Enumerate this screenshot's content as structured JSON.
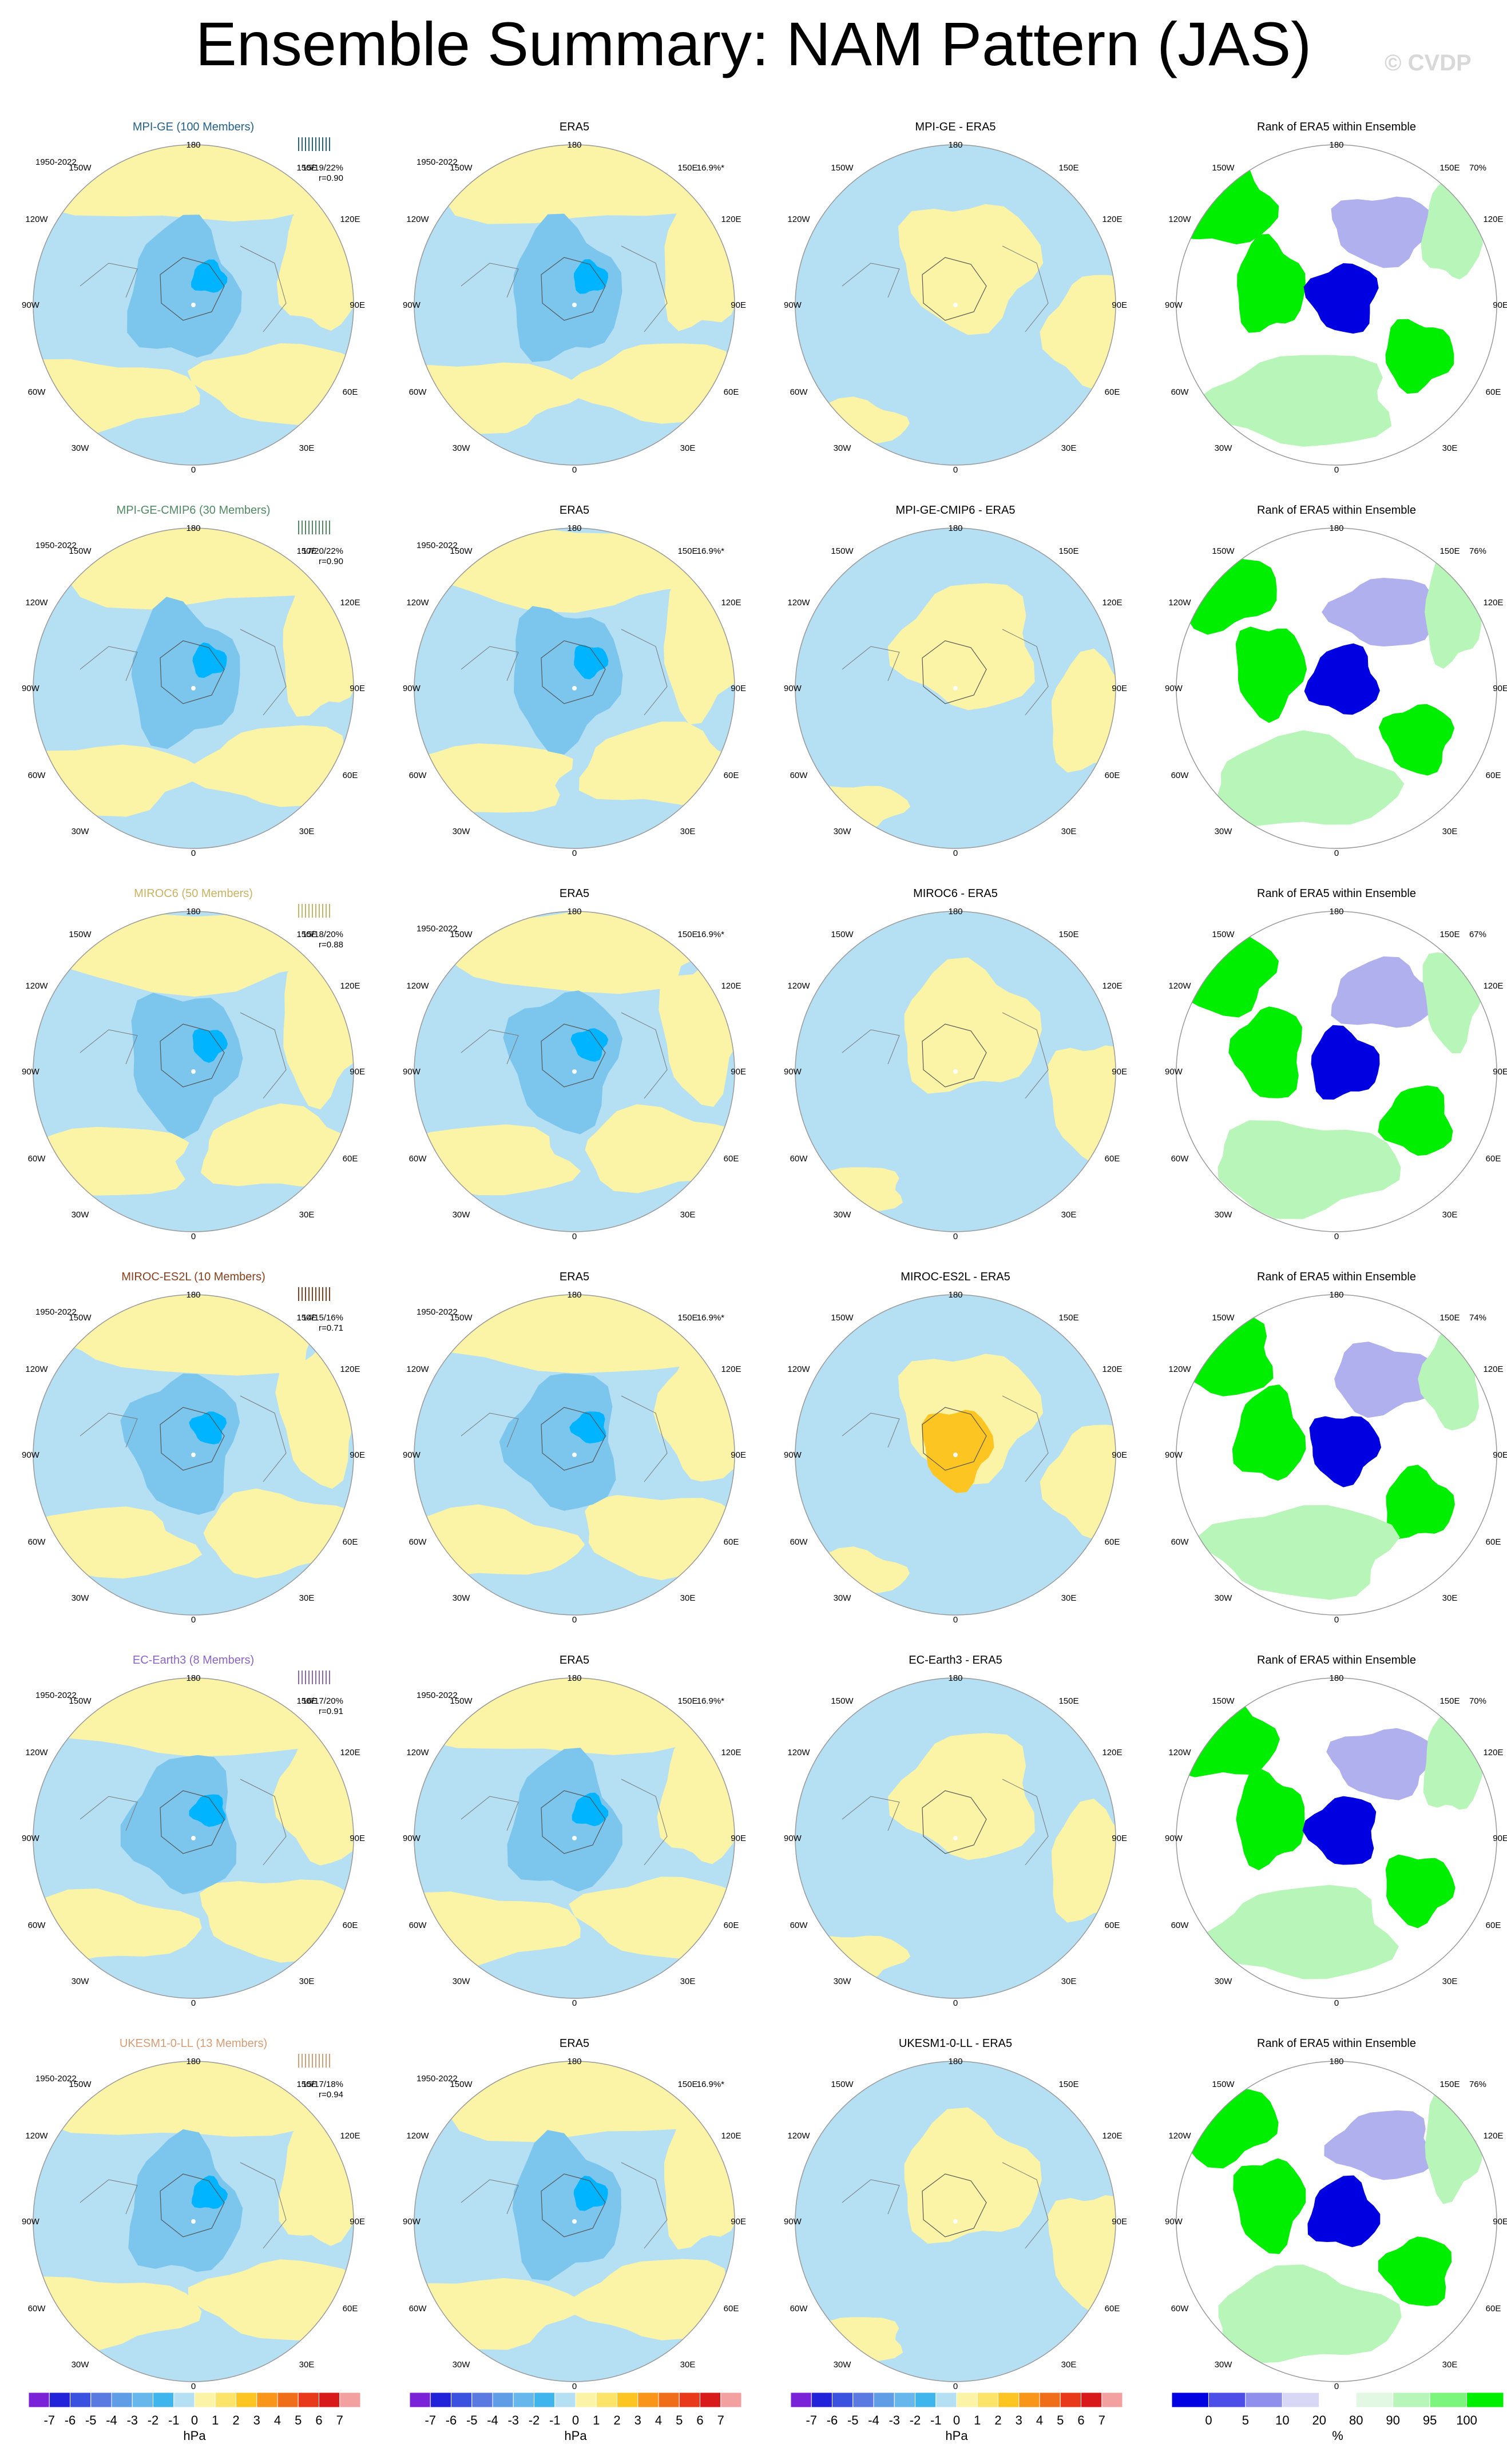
{
  "title": "Ensemble Summary: NAM Pattern (JAS)",
  "watermark": "© CVDP",
  "colors": {
    "ocean_blue": "#b5dff2",
    "neg_mid": "#7cc6ee",
    "neg_deep": "#3fb5ee",
    "neg_core": "#00b4ff",
    "pos_yellow": "#fbf4a6",
    "pos_orange": "#fcc521",
    "rank_green": "#00ef00",
    "rank_lightgreen": "#b8f5b8",
    "rank_blue": "#0000e0",
    "rank_lightblue": "#b0b0ee"
  },
  "rows": [
    {
      "model": {
        "title": "MPI-GE (100 Members)",
        "title_color": "#23628a",
        "period": "1950-2022",
        "pct": "15/19/22%",
        "r": "r=0.90"
      },
      "obs": {
        "title": "ERA5",
        "period": "1950-2022",
        "pct": "16.9%*"
      },
      "diff": {
        "title": "MPI-GE - ERA5"
      },
      "rank": {
        "title": "Rank of ERA5 within Ensemble",
        "pct": "70%"
      }
    },
    {
      "model": {
        "title": "MPI-GE-CMIP6 (30 Members)",
        "title_color": "#4f8a63",
        "period": "1950-2022",
        "pct": "17/20/22%",
        "r": "r=0.90"
      },
      "obs": {
        "title": "ERA5",
        "period": "1950-2022",
        "pct": "16.9%*"
      },
      "diff": {
        "title": "MPI-GE-CMIP6 - ERA5"
      },
      "rank": {
        "title": "Rank of ERA5 within Ensemble",
        "pct": "76%"
      }
    },
    {
      "model": {
        "title": "MIROC6 (50 Members)",
        "title_color": "#c9b262",
        "period": "",
        "pct": "15/18/20%",
        "r": "r=0.88"
      },
      "obs": {
        "title": "ERA5",
        "period": "1950-2022",
        "pct": "16.9%*"
      },
      "diff": {
        "title": "MIROC6 - ERA5"
      },
      "rank": {
        "title": "Rank of ERA5 within Ensemble",
        "pct": "67%"
      }
    },
    {
      "model": {
        "title": "MIROC-ES2L (10 Members)",
        "title_color": "#8a3e1c",
        "period": "1950-2022",
        "pct": "14/15/16%",
        "r": "r=0.71"
      },
      "obs": {
        "title": "ERA5",
        "period": "1950-2022",
        "pct": "16.9%*"
      },
      "diff": {
        "title": "MIROC-ES2L - ERA5"
      },
      "rank": {
        "title": "Rank of ERA5 within Ensemble",
        "pct": "74%"
      }
    },
    {
      "model": {
        "title": "EC-Earth3 (8 Members)",
        "title_color": "#8b63c9",
        "period": "1950-2022",
        "pct": "16/17/20%",
        "r": "r=0.91"
      },
      "obs": {
        "title": "ERA5",
        "period": "1950-2022",
        "pct": "16.9%*"
      },
      "diff": {
        "title": "EC-Earth3 - ERA5"
      },
      "rank": {
        "title": "Rank of ERA5 within Ensemble",
        "pct": "70%"
      }
    },
    {
      "model": {
        "title": "UKESM1-0-LL (13 Members)",
        "title_color": "#d79c73",
        "period": "1950-2022",
        "pct": "15/17/18%",
        "r": "r=0.94"
      },
      "obs": {
        "title": "ERA5",
        "period": "1950-2022",
        "pct": "16.9%*"
      },
      "diff": {
        "title": "UKESM1-0-LL - ERA5"
      },
      "rank": {
        "title": "Rank of ERA5 within Ensemble",
        "pct": "76%"
      }
    }
  ],
  "map_labels": {
    "top": "180",
    "bottom": "0",
    "left": "90W",
    "right": "90E",
    "upper_left": "150W",
    "upper_right": "150E",
    "mid_upper_left": "120W",
    "mid_upper_right": "120E",
    "mid_lower_left": "60W",
    "mid_lower_right": "60E",
    "lower_left": "30W",
    "lower_right": "30E"
  },
  "colorbars": {
    "hpa": {
      "unit": "hPa",
      "labels": [
        "-7",
        "-6",
        "-5",
        "-4",
        "-3",
        "-2",
        "-1",
        "0",
        "1",
        "2",
        "3",
        "4",
        "5",
        "6",
        "7"
      ],
      "colors": [
        "#7a22d8",
        "#2222d8",
        "#3b52e0",
        "#5a7ae2",
        "#5f9de6",
        "#66b8ec",
        "#3fb5ee",
        "#b5dff2",
        "#fbf4a6",
        "#fce36a",
        "#fcc521",
        "#f9961a",
        "#f06d1a",
        "#e83a1a",
        "#d81a1a",
        "#f2a0a0"
      ]
    },
    "rank": {
      "unit": "%",
      "labels": [
        "0",
        "5",
        "10",
        "20",
        "80",
        "90",
        "95",
        "100"
      ],
      "colors": [
        "#0000e0",
        "#4d4de8",
        "#9090ec",
        "#d8d8f6",
        "#ffffff",
        "#e2f8e2",
        "#b8f5b8",
        "#7cf57c",
        "#00ef00"
      ]
    }
  }
}
